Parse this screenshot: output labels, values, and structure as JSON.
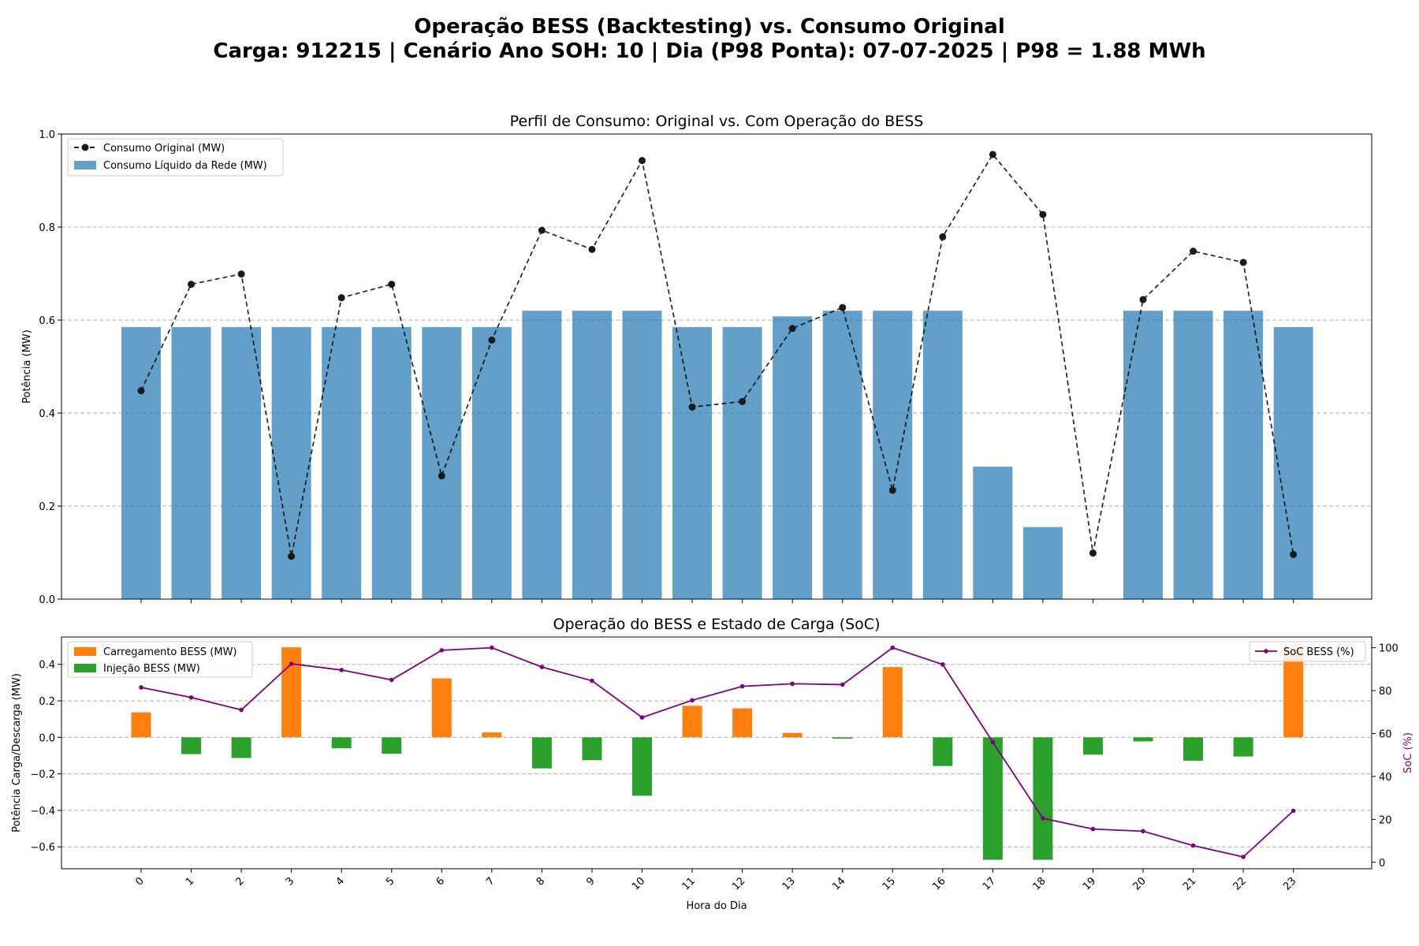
{
  "figure": {
    "title_line1": "Operação BESS (Backtesting) vs. Consumo Original",
    "title_line2": "Carga: 912215 | Cenário Ano SOH: 10 | Dia (P98 Ponta): 07-07-2025 | P98 = 1.88 MWh"
  },
  "colors": {
    "net_bar": "#1f77b4",
    "original_line": "#000000",
    "charge": "#ff7f0e",
    "discharge": "#2ca02c",
    "soc": "#800080",
    "grid": "#b0b0b0"
  },
  "chart_data": [
    {
      "type": "bar",
      "title": "Perfil de Consumo: Original vs. Com Operação do BESS",
      "xlabel": "",
      "ylabel": "Potência (MW)",
      "ylim": [
        0,
        1.0
      ],
      "yticks": [
        "0.0",
        "0.2",
        "0.4",
        "0.6",
        "0.8",
        "1.0"
      ],
      "grid": "horizontal dashed",
      "legend_position": "top-left",
      "categories": [
        0,
        1,
        2,
        3,
        4,
        5,
        6,
        7,
        8,
        9,
        10,
        11,
        12,
        13,
        14,
        15,
        16,
        17,
        18,
        19,
        20,
        21,
        22,
        23
      ],
      "series": [
        {
          "name": "Consumo Original (MW)",
          "type": "line",
          "style": "dashed with circle markers",
          "values": [
            0.448,
            0.677,
            0.699,
            0.092,
            0.648,
            0.677,
            0.265,
            0.557,
            0.793,
            0.752,
            0.943,
            0.413,
            0.425,
            0.582,
            0.627,
            0.234,
            0.779,
            0.956,
            0.827,
            0.099,
            0.644,
            0.748,
            0.724,
            0.096
          ]
        },
        {
          "name": "Consumo Líquido da Rede (MW)",
          "type": "bar",
          "values": [
            0.585,
            0.585,
            0.585,
            0.585,
            0.585,
            0.585,
            0.585,
            0.585,
            0.62,
            0.62,
            0.62,
            0.585,
            0.585,
            0.608,
            0.62,
            0.62,
            0.62,
            0.285,
            0.155,
            0.0,
            0.62,
            0.62,
            0.62,
            0.585
          ]
        }
      ]
    },
    {
      "type": "bar",
      "title": "Operação do BESS e Estado de Carga (SoC)",
      "xlabel": "Hora do Dia",
      "ylabel": "Potência Carga/Descarga (MW)",
      "ylabel_right": "SoC (%)",
      "ylim": [
        -0.72,
        0.55
      ],
      "ylim_right": [
        -3,
        105
      ],
      "yticks": [
        "−0.6",
        "−0.4",
        "−0.2",
        "0.0",
        "0.2",
        "0.4"
      ],
      "yticks_right": [
        "0",
        "20",
        "40",
        "60",
        "80",
        "100"
      ],
      "grid": "horizontal dashed",
      "legend_position": "top-left and top-right",
      "categories": [
        0,
        1,
        2,
        3,
        4,
        5,
        6,
        7,
        8,
        9,
        10,
        11,
        12,
        13,
        14,
        15,
        16,
        17,
        18,
        19,
        20,
        21,
        22,
        23
      ],
      "series": [
        {
          "name": "Carregamento BESS (MW)",
          "type": "bar",
          "values": [
            0.137,
            0,
            0,
            0.493,
            0,
            0,
            0.323,
            0.027,
            0,
            0,
            0,
            0.173,
            0.159,
            0.024,
            0,
            0.385,
            0,
            0,
            0,
            0,
            0,
            0,
            0,
            0.489
          ]
        },
        {
          "name": "Injeção BESS (MW)",
          "type": "bar",
          "values": [
            0,
            -0.092,
            -0.113,
            0,
            -0.06,
            -0.09,
            0,
            0,
            -0.17,
            -0.125,
            -0.32,
            0,
            0,
            0,
            -0.007,
            0,
            -0.157,
            -0.671,
            -0.671,
            -0.095,
            -0.022,
            -0.128,
            -0.105,
            0
          ]
        },
        {
          "name": "SoC BESS (%)",
          "type": "line",
          "axis": "right",
          "values": [
            81.5,
            76.8,
            71.0,
            92.5,
            89.6,
            85.0,
            98.8,
            100.0,
            91.0,
            84.6,
            67.5,
            75.5,
            82.0,
            83.2,
            82.8,
            100.0,
            92.2,
            56.0,
            20.5,
            15.5,
            14.5,
            7.8,
            2.5,
            24.0
          ]
        }
      ]
    }
  ]
}
